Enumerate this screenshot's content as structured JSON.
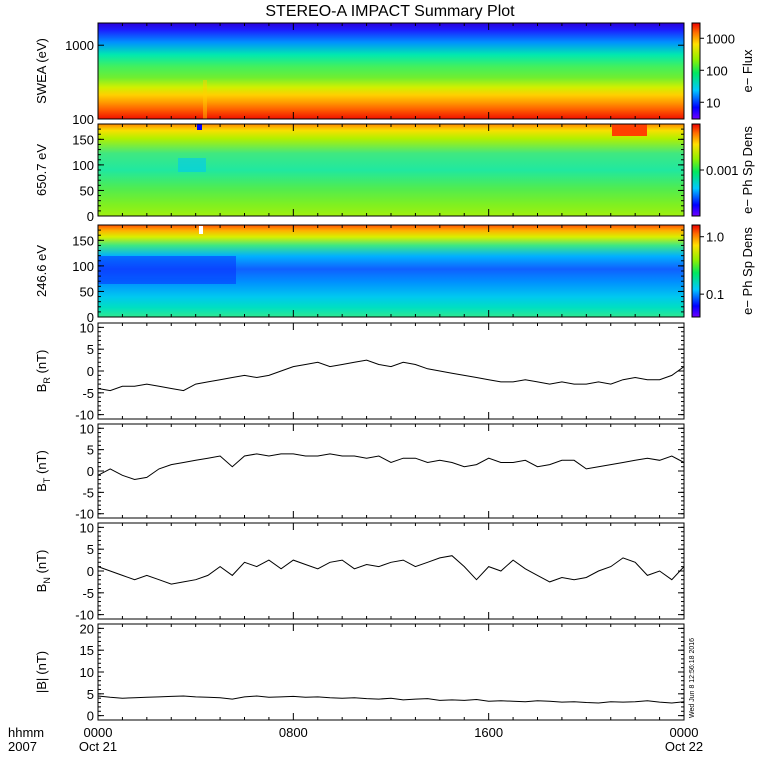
{
  "title": "STEREO-A IMPACT Summary Plot",
  "time_axis": {
    "row1_label": "hhmm",
    "row2_label": "2007",
    "ticks": [
      {
        "hour": 0,
        "label": "0000",
        "date": "Oct 21"
      },
      {
        "hour": 8,
        "label": "0800",
        "date": ""
      },
      {
        "hour": 16,
        "label": "1600",
        "date": ""
      },
      {
        "hour": 24,
        "label": "0000",
        "date": "Oct 22"
      }
    ]
  },
  "stamp": "Wed Jun  8 12:56:18 2016",
  "panels": [
    {
      "ylabel": "SWEA (eV)",
      "cbar_label": "e− Flux",
      "cbar_ticks": [
        "1000",
        "100",
        "10"
      ]
    },
    {
      "ylabel": "650.7 eV",
      "cbar_label": "e− Ph Sp Dens",
      "cbar_ticks": [
        "0.001"
      ]
    },
    {
      "ylabel": "246.6 eV",
      "cbar_label": "e− Ph Sp Dens",
      "cbar_ticks": [
        "1.0",
        "0.1"
      ]
    },
    {
      "ylabel_main": "B",
      "ylabel_sub": "R",
      "ylabel_unit": "(nT)"
    },
    {
      "ylabel_main": "B",
      "ylabel_sub": "T",
      "ylabel_unit": "(nT)"
    },
    {
      "ylabel_main": "B",
      "ylabel_sub": "N",
      "ylabel_unit": "(nT)"
    },
    {
      "ylabel_main": "|B|",
      "ylabel_sub": "",
      "ylabel_unit": "(nT)"
    }
  ],
  "chart_data": [
    {
      "type": "heatmap",
      "title": "STEREO-A IMPACT Summary Plot",
      "ylabel": "SWEA (eV)",
      "y_scale": "log",
      "ylim": [
        100,
        2000
      ],
      "yticks": [
        100,
        1000
      ],
      "xlim_hours": [
        0,
        24
      ],
      "colorbar": {
        "label": "e− Flux",
        "scale": "log",
        "ticks": [
          10,
          100,
          1000
        ]
      },
      "description_values": "flux decreases with energy; highest (red) near 100 eV, lowest (blue/purple) near 2000 eV; slight dip between 0300 and 0400"
    },
    {
      "type": "heatmap",
      "ylabel": "650.7 eV",
      "ylim": [
        0,
        180
      ],
      "yticks": [
        0,
        50,
        100,
        150
      ],
      "xlim_hours": [
        0,
        24
      ],
      "colorbar": {
        "label": "e− Ph Sp Dens",
        "scale": "log",
        "ticks": [
          0.001
        ]
      }
    },
    {
      "type": "heatmap",
      "ylabel": "246.6 eV",
      "ylim": [
        0,
        180
      ],
      "yticks": [
        0,
        50,
        100,
        150
      ],
      "xlim_hours": [
        0,
        24
      ],
      "colorbar": {
        "label": "e− Ph Sp Dens",
        "scale": "log",
        "ticks": [
          0.1,
          1.0
        ]
      }
    },
    {
      "type": "line",
      "name": "B_R",
      "ylabel": "B_R (nT)",
      "ylim": [
        -11,
        11
      ],
      "yticks": [
        -10,
        -5,
        0,
        5,
        10
      ],
      "x": [
        0,
        0.5,
        1,
        1.5,
        2,
        2.5,
        3,
        3.5,
        4,
        4.5,
        5,
        5.5,
        6,
        6.5,
        7,
        7.5,
        8,
        8.5,
        9,
        9.5,
        10,
        10.5,
        11,
        11.5,
        12,
        12.5,
        13,
        13.5,
        14,
        14.5,
        15,
        15.5,
        16,
        16.5,
        17,
        17.5,
        18,
        18.5,
        19,
        19.5,
        20,
        20.5,
        21,
        21.5,
        22,
        22.5,
        23,
        23.5,
        24
      ],
      "y": [
        -4,
        -4.5,
        -3.5,
        -3.5,
        -3,
        -3.5,
        -4,
        -4.5,
        -3,
        -2.5,
        -2,
        -1.5,
        -1,
        -1.5,
        -1,
        0,
        1,
        1.5,
        2,
        1,
        1.5,
        2,
        2.5,
        1.5,
        1,
        2,
        1.5,
        0.5,
        0,
        -0.5,
        -1,
        -1.5,
        -2,
        -2.5,
        -2.5,
        -2,
        -2.5,
        -3,
        -2.5,
        -3,
        -3,
        -2.5,
        -3,
        -2,
        -1.5,
        -2,
        -2,
        -1,
        1
      ]
    },
    {
      "type": "line",
      "name": "B_T",
      "ylabel": "B_T (nT)",
      "ylim": [
        -11,
        11
      ],
      "yticks": [
        -10,
        -5,
        0,
        5,
        10
      ],
      "x": [
        0,
        0.5,
        1,
        1.5,
        2,
        2.5,
        3,
        3.5,
        4,
        4.5,
        5,
        5.5,
        6,
        6.5,
        7,
        7.5,
        8,
        8.5,
        9,
        9.5,
        10,
        10.5,
        11,
        11.5,
        12,
        12.5,
        13,
        13.5,
        14,
        14.5,
        15,
        15.5,
        16,
        16.5,
        17,
        17.5,
        18,
        18.5,
        19,
        19.5,
        20,
        20.5,
        21,
        21.5,
        22,
        22.5,
        23,
        23.5,
        24
      ],
      "y": [
        -1,
        0.5,
        -1,
        -2,
        -1.5,
        0.5,
        1.5,
        2,
        2.5,
        3,
        3.5,
        1,
        3.5,
        4,
        3.5,
        4,
        4,
        3.5,
        3.5,
        4,
        3.5,
        3.5,
        3,
        3.5,
        2,
        3,
        3,
        2,
        2.5,
        2,
        1,
        1.5,
        3,
        2,
        2,
        2.5,
        1,
        1.5,
        2.5,
        2.5,
        0.5,
        1,
        1.5,
        2,
        2.5,
        3,
        2.5,
        3.5,
        2
      ]
    },
    {
      "type": "line",
      "name": "B_N",
      "ylabel": "B_N (nT)",
      "ylim": [
        -11,
        11
      ],
      "yticks": [
        -10,
        -5,
        0,
        5,
        10
      ],
      "x": [
        0,
        0.5,
        1,
        1.5,
        2,
        2.5,
        3,
        3.5,
        4,
        4.5,
        5,
        5.5,
        6,
        6.5,
        7,
        7.5,
        8,
        8.5,
        9,
        9.5,
        10,
        10.5,
        11,
        11.5,
        12,
        12.5,
        13,
        13.5,
        14,
        14.5,
        15,
        15.5,
        16,
        16.5,
        17,
        17.5,
        18,
        18.5,
        19,
        19.5,
        20,
        20.5,
        21,
        21.5,
        22,
        22.5,
        23,
        23.5,
        24
      ],
      "y": [
        1,
        0,
        -1,
        -2,
        -1,
        -2,
        -3,
        -2.5,
        -2,
        -1,
        1,
        -1,
        2,
        1,
        2.5,
        0.5,
        2.5,
        1.5,
        0.5,
        2,
        2.5,
        0.5,
        1.5,
        1,
        2,
        2.5,
        1,
        2,
        3,
        3.5,
        1,
        -2,
        1,
        0,
        2.5,
        0.5,
        -1,
        -2.5,
        -1.5,
        -2,
        -1.5,
        0,
        1,
        3,
        2,
        -1,
        0,
        -2,
        1
      ]
    },
    {
      "type": "line",
      "name": "|B|",
      "ylabel": "|B| (nT)",
      "ylim": [
        -1,
        21
      ],
      "yticks": [
        0,
        5,
        10,
        15,
        20
      ],
      "x": [
        0,
        0.5,
        1,
        1.5,
        2,
        2.5,
        3,
        3.5,
        4,
        4.5,
        5,
        5.5,
        6,
        6.5,
        7,
        7.5,
        8,
        8.5,
        9,
        9.5,
        10,
        10.5,
        11,
        11.5,
        12,
        12.5,
        13,
        13.5,
        14,
        14.5,
        15,
        15.5,
        16,
        16.5,
        17,
        17.5,
        18,
        18.5,
        19,
        19.5,
        20,
        20.5,
        21,
        21.5,
        22,
        22.5,
        23,
        23.5,
        24
      ],
      "y": [
        4.5,
        4.2,
        4,
        4.1,
        4.2,
        4.3,
        4.4,
        4.5,
        4.3,
        4.2,
        4.1,
        3.8,
        4.3,
        4.5,
        4.2,
        4.3,
        4.4,
        4.2,
        4.3,
        4.1,
        4,
        4.1,
        3.9,
        3.8,
        4,
        3.6,
        3.8,
        3.9,
        3.5,
        3.6,
        3.5,
        3.7,
        3.3,
        3.4,
        3.3,
        3.2,
        3.4,
        3.3,
        3.1,
        3.2,
        3,
        2.9,
        3.2,
        3.1,
        3.2,
        3.4,
        3.1,
        2.9,
        3.2
      ]
    }
  ]
}
